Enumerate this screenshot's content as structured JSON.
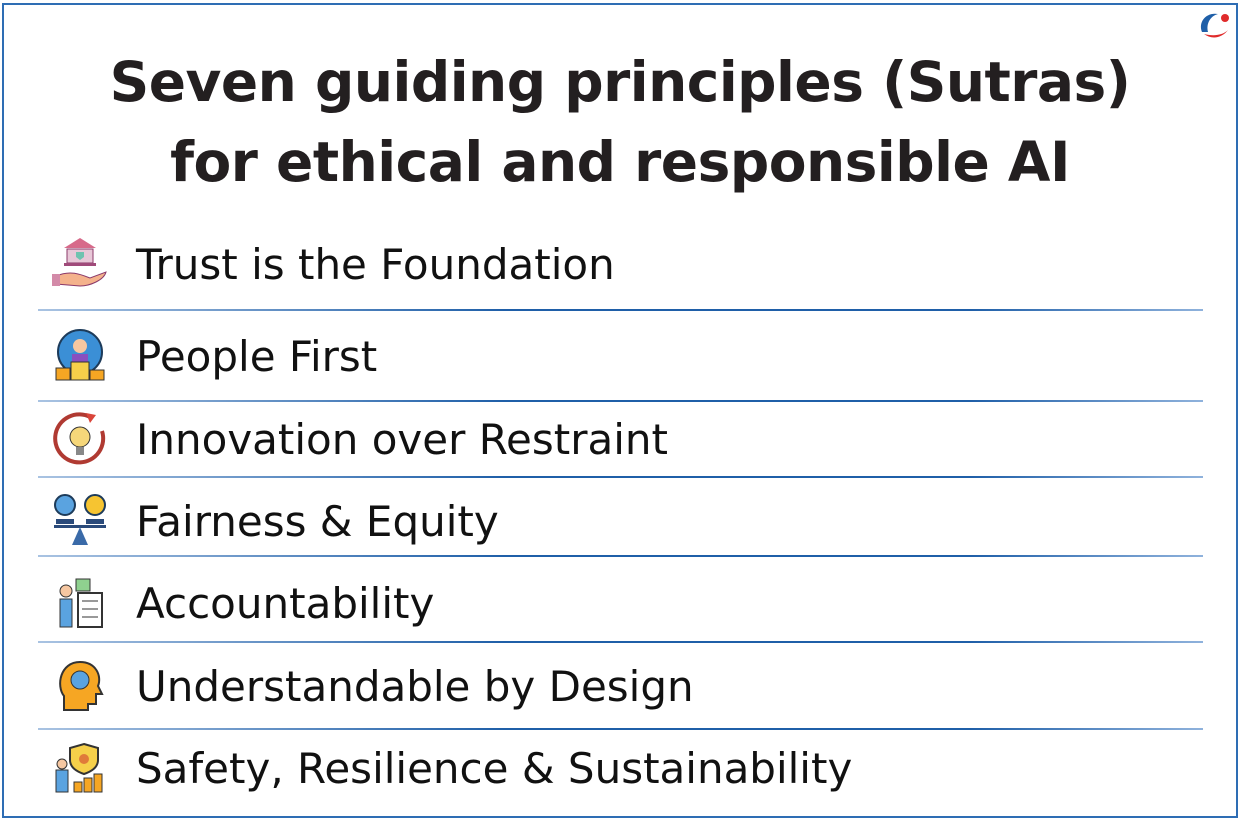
{
  "title_line1": "Seven guiding principles (Sutras)",
  "title_line2": "for ethical and responsible AI",
  "accent_color": "#2e6db4",
  "principles": [
    {
      "label": "Trust is the Foundation",
      "icon": "hand-bank-shield-icon"
    },
    {
      "label": "People First",
      "icon": "person-globe-podium-icon"
    },
    {
      "label": "Innovation over Restraint",
      "icon": "lightbulb-cycle-icon"
    },
    {
      "label": "Fairness & Equity",
      "icon": "balance-scale-icon"
    },
    {
      "label": "Accountability",
      "icon": "person-checklist-icon"
    },
    {
      "label": "Understandable by Design",
      "icon": "head-idea-icon"
    },
    {
      "label": "Safety, Resilience & Sustainability",
      "icon": "safety-shield-growth-icon"
    }
  ]
}
